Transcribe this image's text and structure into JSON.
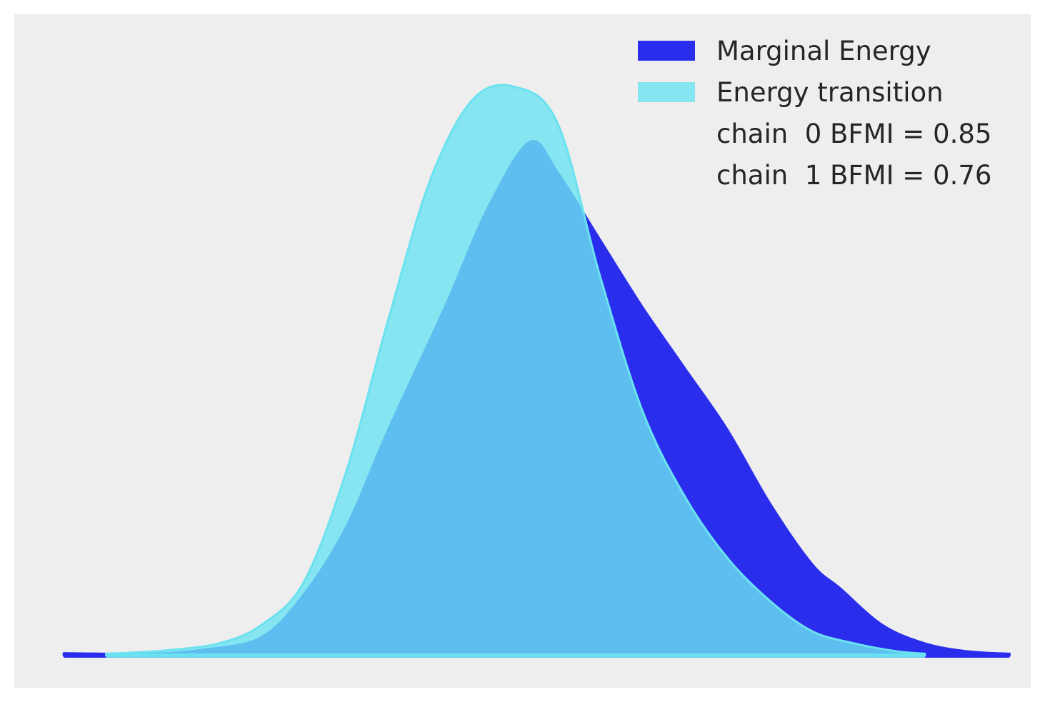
{
  "chart_data": {
    "type": "area",
    "title": "",
    "xlabel": "",
    "ylabel": "",
    "grid": false,
    "axes_visible": false,
    "background_color": "#eeeeee",
    "legend_position": "top-right",
    "series": [
      {
        "name": "Marginal Energy",
        "color": "#2a2eec",
        "opacity": 1.0,
        "x": [
          -3.2,
          -2.6,
          -2.2,
          -1.8,
          -1.5,
          -1.2,
          -0.9,
          -0.5,
          -0.2,
          0.1,
          0.3,
          0.6,
          0.9,
          1.2,
          1.5,
          1.8,
          2.1,
          2.3,
          2.6,
          2.9,
          3.2,
          3.5
        ],
        "y": [
          0.004,
          0.003,
          0.01,
          0.03,
          0.1,
          0.21,
          0.37,
          0.57,
          0.73,
          0.84,
          0.79,
          0.68,
          0.57,
          0.47,
          0.37,
          0.25,
          0.15,
          0.11,
          0.05,
          0.02,
          0.007,
          0.003
        ]
      },
      {
        "name": "Energy transition",
        "color": "#6ae2f0",
        "opacity": 0.8,
        "x": [
          -2.9,
          -2.5,
          -2.1,
          -1.8,
          -1.5,
          -1.2,
          -0.9,
          -0.6,
          -0.3,
          0.0,
          0.3,
          0.6,
          0.9,
          1.2,
          1.5,
          1.8,
          2.1,
          2.4,
          2.7,
          2.9
        ],
        "y": [
          0.003,
          0.008,
          0.02,
          0.05,
          0.12,
          0.3,
          0.55,
          0.78,
          0.91,
          0.93,
          0.87,
          0.62,
          0.4,
          0.26,
          0.16,
          0.09,
          0.04,
          0.02,
          0.007,
          0.003
        ]
      }
    ],
    "xlim": [
      -3.55,
      3.65
    ],
    "ylim": [
      0,
      1.0
    ],
    "legend_extra": [
      "chain  0 BFMI = 0.85",
      "chain  1 BFMI = 0.76"
    ]
  }
}
